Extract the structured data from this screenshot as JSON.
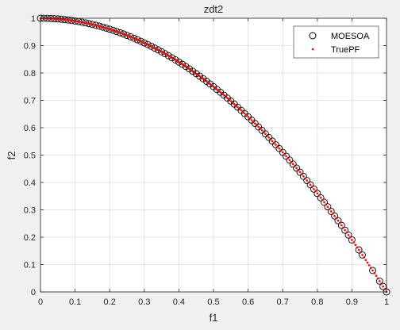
{
  "chart_data": {
    "type": "scatter",
    "title": "zdt2",
    "xlabel": "f1",
    "ylabel": "f2",
    "xlim": [
      0,
      1
    ],
    "ylim": [
      0,
      1
    ],
    "xticks": [
      "0",
      "0.1",
      "0.2",
      "0.3",
      "0.4",
      "0.5",
      "0.6",
      "0.7",
      "0.8",
      "0.9",
      "1"
    ],
    "yticks": [
      "0",
      "0.1",
      "0.2",
      "0.3",
      "0.4",
      "0.5",
      "0.6",
      "0.7",
      "0.8",
      "0.9",
      "1"
    ],
    "grid": true,
    "legend_position": "top-right",
    "colors": {
      "background": "#f0f0f0",
      "axes_face": "#ffffff",
      "grid": "#dcdcdc",
      "marker_edge": "#000000",
      "true_pf": "#ff0000"
    },
    "series": [
      {
        "name": "MOESOA",
        "marker": "circle-open",
        "x": [
          0.0,
          0.01,
          0.02,
          0.03,
          0.04,
          0.05,
          0.06,
          0.07,
          0.08,
          0.09,
          0.1,
          0.11,
          0.12,
          0.13,
          0.14,
          0.15,
          0.16,
          0.17,
          0.18,
          0.19,
          0.2,
          0.21,
          0.22,
          0.23,
          0.24,
          0.25,
          0.26,
          0.27,
          0.28,
          0.29,
          0.3,
          0.31,
          0.32,
          0.33,
          0.34,
          0.35,
          0.36,
          0.37,
          0.38,
          0.39,
          0.4,
          0.41,
          0.42,
          0.43,
          0.44,
          0.45,
          0.46,
          0.47,
          0.48,
          0.49,
          0.5,
          0.51,
          0.52,
          0.53,
          0.54,
          0.55,
          0.56,
          0.57,
          0.58,
          0.59,
          0.6,
          0.61,
          0.62,
          0.63,
          0.64,
          0.65,
          0.66,
          0.67,
          0.68,
          0.69,
          0.7,
          0.71,
          0.72,
          0.73,
          0.74,
          0.75,
          0.76,
          0.77,
          0.78,
          0.79,
          0.8,
          0.81,
          0.82,
          0.83,
          0.84,
          0.85,
          0.86,
          0.87,
          0.88,
          0.89,
          0.9,
          0.92,
          0.93,
          0.96,
          0.98,
          0.99,
          1.0
        ],
        "y": [
          1.0,
          0.9999,
          0.9996,
          0.9991,
          0.9984,
          0.9975,
          0.9964,
          0.9951,
          0.9936,
          0.9919,
          0.99,
          0.9879,
          0.9856,
          0.9831,
          0.9804,
          0.9775,
          0.9744,
          0.9711,
          0.9676,
          0.9639,
          0.96,
          0.9559,
          0.9516,
          0.9471,
          0.9424,
          0.9375,
          0.9324,
          0.9271,
          0.9216,
          0.9159,
          0.91,
          0.9039,
          0.8976,
          0.8911,
          0.8844,
          0.8775,
          0.8704,
          0.8631,
          0.8556,
          0.8479,
          0.84,
          0.8319,
          0.8236,
          0.8151,
          0.8064,
          0.7975,
          0.7884,
          0.7791,
          0.7696,
          0.7599,
          0.75,
          0.7399,
          0.7296,
          0.7191,
          0.7084,
          0.6975,
          0.6864,
          0.6751,
          0.6636,
          0.6519,
          0.64,
          0.6279,
          0.6156,
          0.6031,
          0.5904,
          0.5775,
          0.5644,
          0.5511,
          0.5376,
          0.5239,
          0.51,
          0.4959,
          0.4816,
          0.4671,
          0.4524,
          0.4375,
          0.4224,
          0.4071,
          0.3916,
          0.3759,
          0.36,
          0.3439,
          0.3276,
          0.3111,
          0.2944,
          0.2775,
          0.2604,
          0.2431,
          0.2256,
          0.2079,
          0.19,
          0.1536,
          0.1351,
          0.0784,
          0.0396,
          0.0199,
          0.0
        ]
      },
      {
        "name": "TruePF",
        "marker": "point",
        "x": [
          0.0,
          0.005,
          0.01,
          0.015,
          0.02,
          0.025,
          0.03,
          0.035,
          0.04,
          0.045,
          0.05,
          0.055,
          0.06,
          0.065,
          0.07,
          0.075,
          0.08,
          0.085,
          0.09,
          0.095,
          0.1,
          0.105,
          0.11,
          0.115,
          0.12,
          0.125,
          0.13,
          0.135,
          0.14,
          0.145,
          0.15,
          0.155,
          0.16,
          0.165,
          0.17,
          0.175,
          0.18,
          0.185,
          0.19,
          0.195,
          0.2,
          0.205,
          0.21,
          0.215,
          0.22,
          0.225,
          0.23,
          0.235,
          0.24,
          0.245,
          0.25,
          0.255,
          0.26,
          0.265,
          0.27,
          0.275,
          0.28,
          0.285,
          0.29,
          0.295,
          0.3,
          0.305,
          0.31,
          0.315,
          0.32,
          0.325,
          0.33,
          0.335,
          0.34,
          0.345,
          0.35,
          0.355,
          0.36,
          0.365,
          0.37,
          0.375,
          0.38,
          0.385,
          0.39,
          0.395,
          0.4,
          0.405,
          0.41,
          0.415,
          0.42,
          0.425,
          0.43,
          0.435,
          0.44,
          0.445,
          0.45,
          0.455,
          0.46,
          0.465,
          0.47,
          0.475,
          0.48,
          0.485,
          0.49,
          0.495,
          0.5,
          0.505,
          0.51,
          0.515,
          0.52,
          0.525,
          0.53,
          0.535,
          0.54,
          0.545,
          0.55,
          0.555,
          0.56,
          0.565,
          0.57,
          0.575,
          0.58,
          0.585,
          0.59,
          0.595,
          0.6,
          0.605,
          0.61,
          0.615,
          0.62,
          0.625,
          0.63,
          0.635,
          0.64,
          0.645,
          0.65,
          0.655,
          0.66,
          0.665,
          0.67,
          0.675,
          0.68,
          0.685,
          0.69,
          0.695,
          0.7,
          0.705,
          0.71,
          0.715,
          0.72,
          0.725,
          0.73,
          0.735,
          0.74,
          0.745,
          0.75,
          0.755,
          0.76,
          0.765,
          0.77,
          0.775,
          0.78,
          0.785,
          0.79,
          0.795,
          0.8,
          0.805,
          0.81,
          0.815,
          0.82,
          0.825,
          0.83,
          0.835,
          0.84,
          0.845,
          0.85,
          0.855,
          0.86,
          0.865,
          0.87,
          0.875,
          0.88,
          0.885,
          0.89,
          0.895,
          0.9,
          0.905,
          0.91,
          0.915,
          0.92,
          0.925,
          0.93,
          0.935,
          0.94,
          0.945,
          0.95,
          0.955,
          0.96,
          0.965,
          0.97,
          0.975,
          0.98,
          0.985,
          0.99,
          0.995,
          1.0
        ],
        "y": [
          1.0,
          1.0,
          0.9999,
          0.9998,
          0.9996,
          0.9994,
          0.9991,
          0.9988,
          0.9984,
          0.998,
          0.9975,
          0.997,
          0.9964,
          0.9958,
          0.9951,
          0.9944,
          0.9936,
          0.9928,
          0.9919,
          0.991,
          0.99,
          0.989,
          0.9879,
          0.9868,
          0.9856,
          0.9844,
          0.9831,
          0.9818,
          0.9804,
          0.979,
          0.9775,
          0.976,
          0.9744,
          0.9728,
          0.9711,
          0.9694,
          0.9676,
          0.9658,
          0.9639,
          0.962,
          0.96,
          0.958,
          0.9559,
          0.9538,
          0.9516,
          0.9494,
          0.9471,
          0.9448,
          0.9424,
          0.94,
          0.9375,
          0.935,
          0.9324,
          0.9298,
          0.9271,
          0.9244,
          0.9216,
          0.9188,
          0.9159,
          0.913,
          0.91,
          0.907,
          0.9039,
          0.9008,
          0.8976,
          0.8944,
          0.8911,
          0.8878,
          0.8844,
          0.881,
          0.8775,
          0.874,
          0.8704,
          0.8668,
          0.8631,
          0.8594,
          0.8556,
          0.8518,
          0.8479,
          0.844,
          0.84,
          0.836,
          0.8319,
          0.8278,
          0.8236,
          0.8194,
          0.8151,
          0.8108,
          0.8064,
          0.802,
          0.7975,
          0.793,
          0.7884,
          0.7838,
          0.7791,
          0.7744,
          0.7696,
          0.7648,
          0.7599,
          0.755,
          0.75,
          0.745,
          0.7399,
          0.7348,
          0.7296,
          0.7244,
          0.7191,
          0.7138,
          0.7084,
          0.703,
          0.6975,
          0.692,
          0.6864,
          0.6808,
          0.6751,
          0.6694,
          0.6636,
          0.6578,
          0.6519,
          0.646,
          0.64,
          0.634,
          0.6279,
          0.6218,
          0.6156,
          0.6094,
          0.6031,
          0.5968,
          0.5904,
          0.584,
          0.5775,
          0.571,
          0.5644,
          0.5578,
          0.5511,
          0.5444,
          0.5376,
          0.5308,
          0.5239,
          0.517,
          0.51,
          0.503,
          0.4959,
          0.4888,
          0.4816,
          0.4744,
          0.4671,
          0.4598,
          0.4524,
          0.445,
          0.4375,
          0.43,
          0.4224,
          0.4148,
          0.4071,
          0.3994,
          0.3916,
          0.3838,
          0.3759,
          0.368,
          0.36,
          0.352,
          0.3439,
          0.3358,
          0.3276,
          0.3194,
          0.3111,
          0.3028,
          0.2944,
          0.286,
          0.2775,
          0.269,
          0.2604,
          0.2518,
          0.2431,
          0.2344,
          0.2256,
          0.2168,
          0.2079,
          0.199,
          0.19,
          0.181,
          0.1719,
          0.1628,
          0.1536,
          0.1444,
          0.1351,
          0.1258,
          0.1164,
          0.107,
          0.0975,
          0.088,
          0.0784,
          0.0688,
          0.0591,
          0.0494,
          0.0396,
          0.0298,
          0.0199,
          0.01,
          0.0
        ]
      }
    ]
  }
}
